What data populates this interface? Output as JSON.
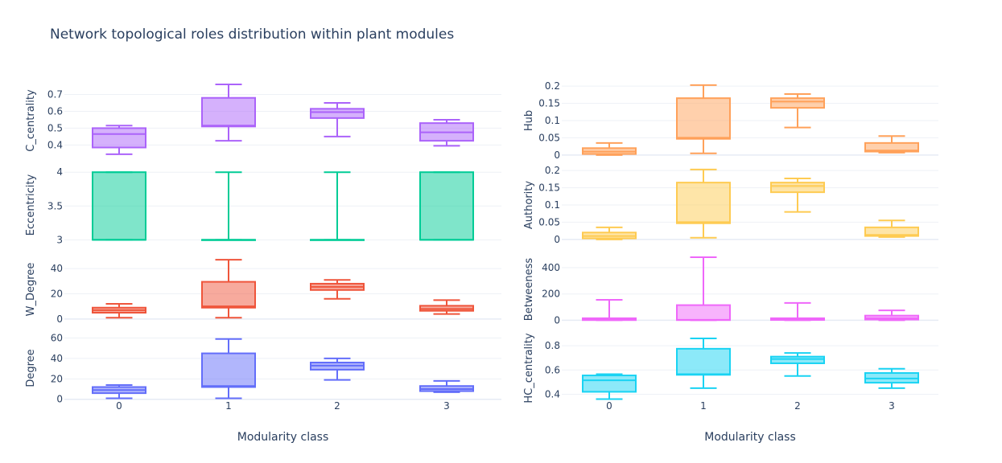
{
  "chart_data": {
    "type": "box",
    "title": "Network topological roles distribution within plant modules",
    "xlabel": "Modularity class",
    "categories": [
      "0",
      "1",
      "2",
      "3"
    ],
    "panels": [
      {
        "ylabel": "C_centrality",
        "color": "#ab63fa",
        "ylim": [
          0.33,
          0.76
        ],
        "ticks": [
          0.4,
          0.5,
          0.6,
          0.7
        ],
        "tick_labels": [
          "0.4",
          "0.5",
          "0.6",
          "0.7"
        ],
        "boxes": [
          {
            "min": 0.345,
            "q1": 0.385,
            "median": 0.465,
            "q3": 0.5,
            "max": 0.515
          },
          {
            "min": 0.425,
            "q1": 0.51,
            "median": 0.515,
            "q3": 0.68,
            "max": 0.76
          },
          {
            "min": 0.45,
            "q1": 0.56,
            "median": 0.595,
            "q3": 0.615,
            "max": 0.65
          },
          {
            "min": 0.395,
            "q1": 0.425,
            "median": 0.475,
            "q3": 0.53,
            "max": 0.55
          }
        ]
      },
      {
        "ylabel": "Hub",
        "color": "#ffa15a",
        "ylim": [
          -0.005,
          0.205
        ],
        "ticks": [
          0,
          0.05,
          0.1,
          0.15,
          0.2
        ],
        "tick_labels": [
          "0",
          "0.05",
          "0.1",
          "0.15",
          "0.2"
        ],
        "boxes": [
          {
            "min": 0.0,
            "q1": 0.003,
            "median": 0.01,
            "q3": 0.02,
            "max": 0.035
          },
          {
            "min": 0.005,
            "q1": 0.047,
            "median": 0.05,
            "q3": 0.165,
            "max": 0.203
          },
          {
            "min": 0.08,
            "q1": 0.137,
            "median": 0.155,
            "q3": 0.165,
            "max": 0.177
          },
          {
            "min": 0.007,
            "q1": 0.01,
            "median": 0.013,
            "q3": 0.035,
            "max": 0.055
          }
        ]
      },
      {
        "ylabel": "Eccentricity",
        "color": "#00cc96",
        "ylim": [
          2.98,
          4.05
        ],
        "ticks": [
          3,
          3.5,
          4
        ],
        "tick_labels": [
          "3",
          "3.5",
          "4"
        ],
        "boxes": [
          {
            "min": 3,
            "q1": 3,
            "median": 3,
            "q3": 4,
            "max": 4
          },
          {
            "min": 3,
            "q1": 3,
            "median": 3,
            "q3": 3,
            "max": 4
          },
          {
            "min": 3,
            "q1": 3,
            "median": 3,
            "q3": 3,
            "max": 4
          },
          {
            "min": 3,
            "q1": 3,
            "median": 3,
            "q3": 4,
            "max": 4
          }
        ]
      },
      {
        "ylabel": "Authority",
        "color": "#fecb52",
        "ylim": [
          -0.005,
          0.205
        ],
        "ticks": [
          0,
          0.05,
          0.1,
          0.15,
          0.2
        ],
        "tick_labels": [
          "0",
          "0.05",
          "0.1",
          "0.15",
          "0.2"
        ],
        "boxes": [
          {
            "min": 0.0,
            "q1": 0.003,
            "median": 0.01,
            "q3": 0.02,
            "max": 0.035
          },
          {
            "min": 0.005,
            "q1": 0.047,
            "median": 0.05,
            "q3": 0.165,
            "max": 0.203
          },
          {
            "min": 0.08,
            "q1": 0.137,
            "median": 0.155,
            "q3": 0.165,
            "max": 0.177
          },
          {
            "min": 0.007,
            "q1": 0.01,
            "median": 0.013,
            "q3": 0.035,
            "max": 0.055
          }
        ]
      },
      {
        "ylabel": "W_Degree",
        "color": "#ef553b",
        "ylim": [
          -2,
          49
        ],
        "ticks": [
          0,
          20,
          40
        ],
        "tick_labels": [
          "0",
          "20",
          "40"
        ],
        "boxes": [
          {
            "min": 1,
            "q1": 5,
            "median": 7,
            "q3": 9,
            "max": 12
          },
          {
            "min": 1,
            "q1": 9,
            "median": 10,
            "q3": 29.5,
            "max": 47
          },
          {
            "min": 16,
            "q1": 23,
            "median": 25.5,
            "q3": 28,
            "max": 31
          },
          {
            "min": 4,
            "q1": 6.5,
            "median": 8,
            "q3": 10.5,
            "max": 15
          }
        ]
      },
      {
        "ylabel": "Betweeness",
        "color": "#ef67fa",
        "ylim": [
          -10,
          480
        ],
        "ticks": [
          0,
          200,
          400
        ],
        "tick_labels": [
          "0",
          "200",
          "400"
        ],
        "boxes": [
          {
            "min": 0,
            "q1": 1,
            "median": 5,
            "q3": 15,
            "max": 155
          },
          {
            "min": 0,
            "q1": 1,
            "median": 3,
            "q3": 115,
            "max": 480
          },
          {
            "min": 0,
            "q1": 2,
            "median": 5,
            "q3": 15,
            "max": 132
          },
          {
            "min": 0,
            "q1": 5,
            "median": 15,
            "q3": 35,
            "max": 75
          }
        ]
      },
      {
        "ylabel": "Degree",
        "color": "#636efa",
        "ylim": [
          -1,
          62
        ],
        "ticks": [
          0,
          20,
          40,
          60
        ],
        "tick_labels": [
          "0",
          "20",
          "40",
          "60"
        ],
        "boxes": [
          {
            "min": 1,
            "q1": 6,
            "median": 9,
            "q3": 12,
            "max": 14
          },
          {
            "min": 1,
            "q1": 12,
            "median": 13,
            "q3": 45,
            "max": 59
          },
          {
            "min": 19,
            "q1": 29,
            "median": 33,
            "q3": 36,
            "max": 40
          },
          {
            "min": 7,
            "q1": 8,
            "median": 10,
            "q3": 13,
            "max": 18
          }
        ]
      },
      {
        "ylabel": "HC_centrality",
        "color": "#19d3f3",
        "ylim": [
          0.35,
          0.88
        ],
        "ticks": [
          0.4,
          0.6,
          0.8
        ],
        "tick_labels": [
          "0.4",
          "0.6",
          "0.8"
        ],
        "boxes": [
          {
            "min": 0.36,
            "q1": 0.42,
            "median": 0.515,
            "q3": 0.555,
            "max": 0.565
          },
          {
            "min": 0.45,
            "q1": 0.56,
            "median": 0.565,
            "q3": 0.775,
            "max": 0.86
          },
          {
            "min": 0.55,
            "q1": 0.655,
            "median": 0.69,
            "q3": 0.71,
            "max": 0.74
          },
          {
            "min": 0.45,
            "q1": 0.495,
            "median": 0.53,
            "q3": 0.575,
            "max": 0.61
          }
        ]
      }
    ]
  }
}
